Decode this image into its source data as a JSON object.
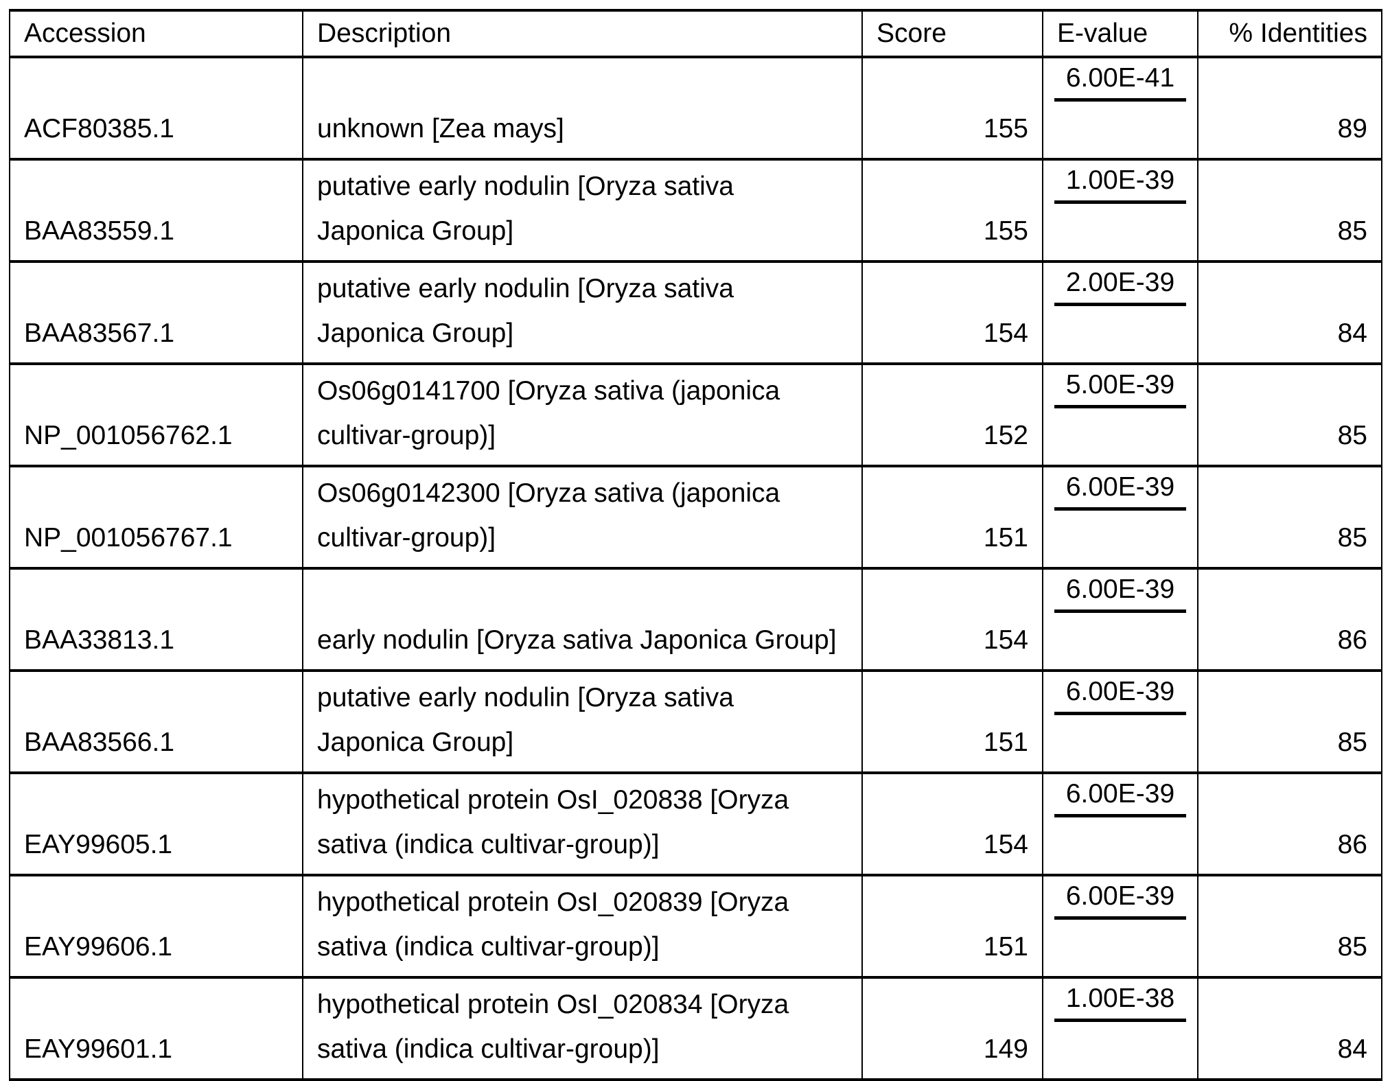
{
  "headers": [
    "Accession",
    "Description",
    "Score",
    "E-value",
    "% Identities"
  ],
  "rows": [
    {
      "accession": "ACF80385.1",
      "description": "unknown [Zea mays]",
      "score": "155",
      "evalue": "6.00E-41",
      "identities": "89"
    },
    {
      "accession": "BAA83559.1",
      "description": "putative early nodulin [Oryza sativa Japonica Group]",
      "score": "155",
      "evalue": "1.00E-39",
      "identities": "85"
    },
    {
      "accession": "BAA83567.1",
      "description": "putative early nodulin [Oryza sativa Japonica Group]",
      "score": "154",
      "evalue": "2.00E-39",
      "identities": "84"
    },
    {
      "accession": "NP_001056762.1",
      "description": "Os06g0141700 [Oryza sativa (japonica cultivar-group)]",
      "score": "152",
      "evalue": "5.00E-39",
      "identities": "85"
    },
    {
      "accession": "NP_001056767.1",
      "description": "Os06g0142300 [Oryza sativa (japonica cultivar-group)]",
      "score": "151",
      "evalue": "6.00E-39",
      "identities": "85"
    },
    {
      "accession": "BAA33813.1",
      "description": "early nodulin [Oryza sativa Japonica Group]",
      "score": "154",
      "evalue": "6.00E-39",
      "identities": "86"
    },
    {
      "accession": "BAA83566.1",
      "description": "putative early nodulin [Oryza sativa Japonica Group]",
      "score": "151",
      "evalue": "6.00E-39",
      "identities": "85"
    },
    {
      "accession": "EAY99605.1",
      "description": "hypothetical protein OsI_020838 [Oryza sativa (indica cultivar-group)]",
      "score": "154",
      "evalue": "6.00E-39",
      "identities": "86"
    },
    {
      "accession": "EAY99606.1",
      "description": "hypothetical protein OsI_020839 [Oryza sativa (indica cultivar-group)]",
      "score": "151",
      "evalue": "6.00E-39",
      "identities": "85"
    },
    {
      "accession": "EAY99601.1",
      "description": "hypothetical protein OsI_020834 [Oryza sativa (indica cultivar-group)]",
      "score": "149",
      "evalue": "1.00E-38",
      "identities": "84"
    }
  ]
}
